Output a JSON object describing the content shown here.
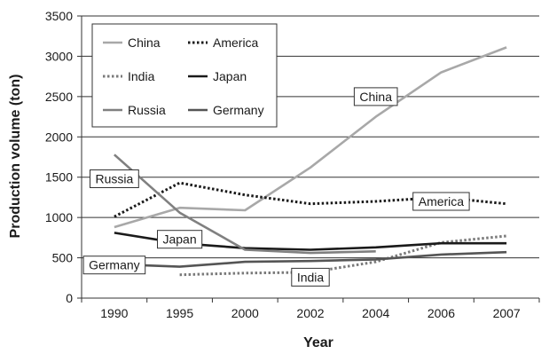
{
  "chart_data": {
    "type": "line",
    "title": "",
    "xlabel": "Year",
    "ylabel": "Production volume (ton)",
    "categories": [
      "1990",
      "1995",
      "2000",
      "2002",
      "2004",
      "2006",
      "2007"
    ],
    "ylim": [
      0,
      3500
    ],
    "yticks": [
      "0",
      "500",
      "1000",
      "1500",
      "2000",
      "2500",
      "3000",
      "3500"
    ],
    "grid": "horizontal",
    "legend": "top-left",
    "series": [
      {
        "name": "China",
        "color": "#a8a8a8",
        "dash": "solid",
        "values": [
          880,
          1120,
          1090,
          1620,
          2250,
          2800,
          3110
        ]
      },
      {
        "name": "America",
        "color": "#1a1a1a",
        "dash": "dotted",
        "values": [
          1010,
          1430,
          1280,
          1170,
          1200,
          1250,
          1170
        ]
      },
      {
        "name": "India",
        "color": "#7a7a7a",
        "dash": "dotted",
        "values": [
          null,
          290,
          310,
          320,
          450,
          690,
          770
        ]
      },
      {
        "name": "Japan",
        "color": "#1a1a1a",
        "dash": "solid",
        "values": [
          810,
          680,
          620,
          600,
          630,
          680,
          680
        ]
      },
      {
        "name": "Russia",
        "color": "#808080",
        "dash": "solid",
        "values": [
          1780,
          1060,
          600,
          560,
          580,
          null,
          null
        ]
      },
      {
        "name": "Germany",
        "color": "#555555",
        "dash": "solid",
        "values": [
          420,
          390,
          450,
          460,
          480,
          540,
          570
        ]
      }
    ],
    "annotations": [
      {
        "text": "China",
        "x": "2004",
        "y": 2500
      },
      {
        "text": "America",
        "x": "2006",
        "y": 1200
      },
      {
        "text": "Russia",
        "x": "1990",
        "y": 1480
      },
      {
        "text": "Japan",
        "x": "1995",
        "y": 730
      },
      {
        "text": "Germany",
        "x": "1990",
        "y": 410
      },
      {
        "text": "India",
        "x": "2002",
        "y": 260
      }
    ]
  }
}
